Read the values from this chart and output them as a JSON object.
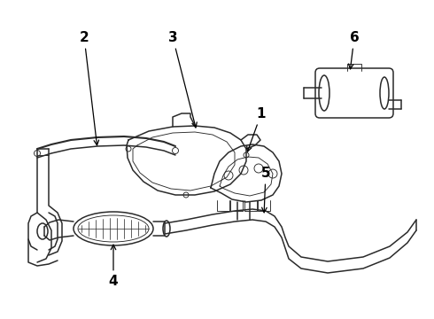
{
  "background_color": "#ffffff",
  "line_color": "#2a2a2a",
  "label_color": "#000000",
  "figsize": [
    4.9,
    3.6
  ],
  "dpi": 100,
  "lw_main": 1.1,
  "lw_thin": 0.65,
  "lw_heavy": 1.5,
  "label_fontsize": 11
}
